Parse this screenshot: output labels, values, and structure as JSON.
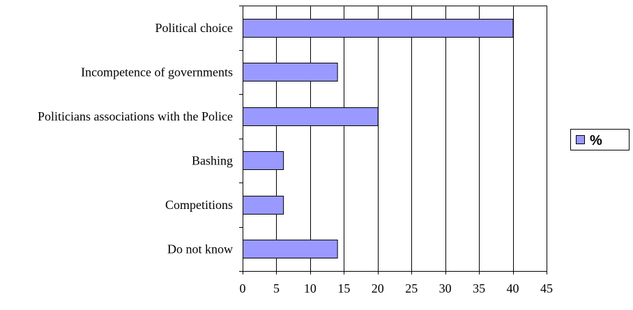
{
  "chart_data": {
    "type": "bar",
    "orientation": "horizontal",
    "categories": [
      "Political choice",
      "Incompetence of governments",
      "Politicians associations with the Police",
      "Bashing",
      "Competitions",
      "Do not know"
    ],
    "series": [
      {
        "name": "%",
        "values": [
          40,
          14,
          20,
          6,
          6,
          14
        ]
      }
    ],
    "title": "",
    "xlabel": "",
    "ylabel": "",
    "xlim": [
      0,
      45
    ],
    "xticks": [
      0,
      5,
      10,
      15,
      20,
      25,
      30,
      35,
      40,
      45
    ],
    "grid": "vertical",
    "legend": "right",
    "colors": {
      "bar_fill": "#9999ff",
      "bar_stroke": "#000000",
      "grid": "#000000",
      "axis": "#000000"
    }
  }
}
